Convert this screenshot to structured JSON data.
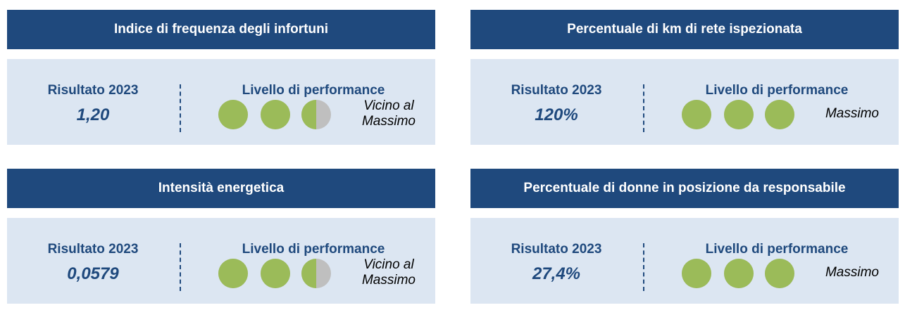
{
  "cards": [
    {
      "title": "Indice di frequenza degli infortuni",
      "result_label": "Risultato 2023",
      "result": "1,20",
      "performance_label": "Livello di performance",
      "score": 2.5,
      "level": "Vicino al Massimo"
    },
    {
      "title": "Percentuale di km di rete ispezionata",
      "result_label": "Risultato 2023",
      "result": "120%",
      "performance_label": "Livello di performance",
      "score": 3,
      "level": "Massimo"
    },
    {
      "title": "Intensità energetica",
      "result_label": "Risultato 2023",
      "result": "0,0579",
      "performance_label": "Livello di performance",
      "score": 2.5,
      "level": "Vicino al Massimo"
    },
    {
      "title": "Percentuale di donne in posizione da responsabile",
      "result_label": "Risultato 2023",
      "result": "27,4%",
      "performance_label": "Livello di performance",
      "score": 3,
      "level": "Massimo"
    }
  ]
}
